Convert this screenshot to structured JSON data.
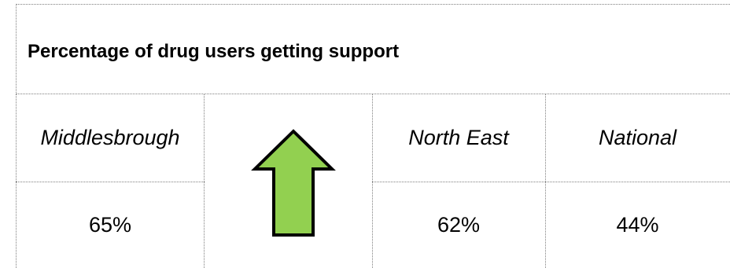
{
  "title": "Percentage of drug users getting support",
  "columns": {
    "middlesbrough": {
      "header": "Middlesbrough",
      "value": "65%"
    },
    "trend": {
      "icon": "up-arrow-icon",
      "color": "#92d050"
    },
    "north_east": {
      "header": "North East",
      "value": "62%"
    },
    "national": {
      "header": "National",
      "value": "44%"
    }
  }
}
